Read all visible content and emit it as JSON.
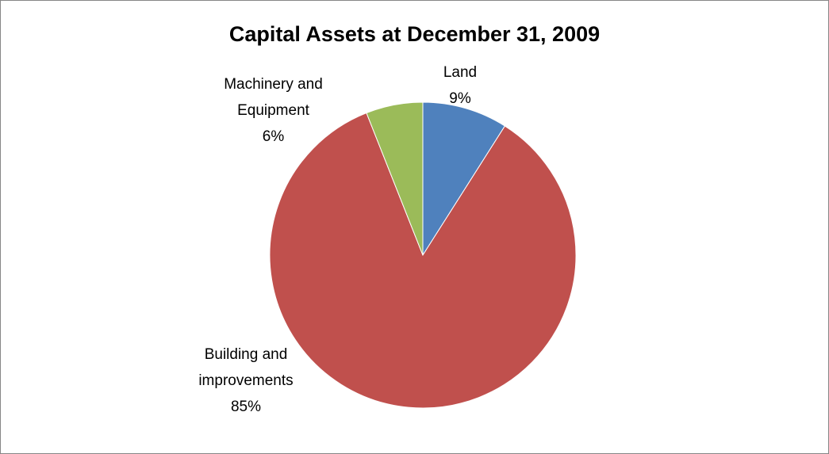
{
  "chart_data": {
    "type": "pie",
    "title": "Capital Assets at December 31, 2009",
    "categories": [
      "Land",
      "Building and improvements",
      "Machinery and Equipment"
    ],
    "values": [
      9,
      85,
      6
    ],
    "value_labels": [
      "9%",
      "85%",
      "6%"
    ],
    "colors": [
      "#4f81bd",
      "#c0504d",
      "#9bbb59"
    ]
  }
}
